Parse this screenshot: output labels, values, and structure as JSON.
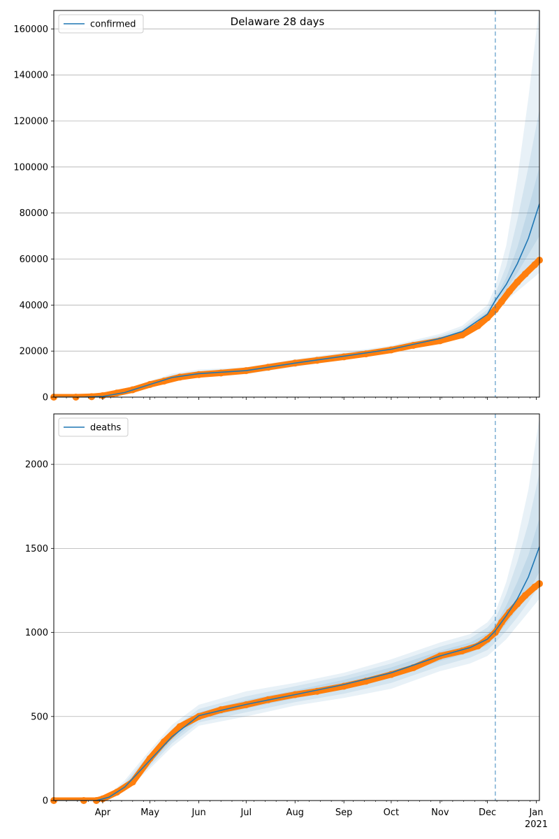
{
  "figure": {
    "title": "Delaware 28 days"
  },
  "colors": {
    "model": "#1f77b4",
    "observed": "#ff7f0e",
    "band": "#1f77b4",
    "grid": "#b0b0b0",
    "forecast_line": "#1f77b4"
  },
  "chart_data": [
    {
      "type": "line",
      "panel": "confirmed",
      "title": "Delaware 28 days",
      "legend": [
        "confirmed"
      ],
      "legend_position": "top-left",
      "grid": "y",
      "xlim": [
        "2020-03-01",
        "2021-01-03"
      ],
      "ylim": [
        0,
        168000
      ],
      "yticks": [
        0,
        20000,
        40000,
        60000,
        80000,
        100000,
        120000,
        140000,
        160000
      ],
      "forecast_start": "2020-12-06",
      "observed": {
        "x": [
          "2020-03-01",
          "2020-03-15",
          "2020-03-25",
          "2020-04-01",
          "2020-04-10",
          "2020-04-20",
          "2020-05-01",
          "2020-05-10",
          "2020-05-20",
          "2020-06-01",
          "2020-06-15",
          "2020-07-01",
          "2020-07-15",
          "2020-08-01",
          "2020-08-15",
          "2020-09-01",
          "2020-09-15",
          "2020-10-01",
          "2020-10-15",
          "2020-11-01",
          "2020-11-15",
          "2020-11-25",
          "2020-12-01",
          "2020-12-06",
          "2020-12-10",
          "2020-12-15",
          "2020-12-20",
          "2020-12-25",
          "2020-12-31",
          "2021-01-03"
        ],
        "y": [
          0,
          0,
          200,
          600,
          1800,
          3200,
          5500,
          7000,
          8700,
          9800,
          10500,
          11500,
          13000,
          14800,
          16000,
          17500,
          18800,
          20500,
          22500,
          24500,
          27000,
          31000,
          34500,
          38000,
          41500,
          46000,
          50000,
          53500,
          57500,
          59500
        ]
      },
      "model": {
        "x": [
          "2020-03-01",
          "2020-03-20",
          "2020-04-01",
          "2020-04-15",
          "2020-05-01",
          "2020-05-15",
          "2020-06-01",
          "2020-07-01",
          "2020-08-01",
          "2020-09-01",
          "2020-10-01",
          "2020-11-01",
          "2020-11-15",
          "2020-12-01",
          "2020-12-06",
          "2020-12-13",
          "2020-12-20",
          "2020-12-27",
          "2021-01-03"
        ],
        "y": [
          0,
          0,
          300,
          2000,
          5500,
          8500,
          10200,
          11500,
          14800,
          17800,
          20800,
          25500,
          28500,
          36000,
          42000,
          49000,
          58000,
          69000,
          84000
        ]
      },
      "bands": [
        {
          "lower": [
            0,
            0,
            0,
            1000,
            4000,
            6800,
            8500,
            10000,
            13200,
            16200,
            19300,
            24000,
            27000,
            34000,
            38500,
            42000,
            46000,
            50000,
            54000
          ],
          "upper": [
            0,
            0,
            500,
            3000,
            7000,
            10200,
            12000,
            13000,
            16400,
            19500,
            22400,
            27500,
            31000,
            40000,
            48000,
            66000,
            95000,
            130000,
            170000
          ]
        },
        {
          "lower": [
            0,
            0,
            100,
            1400,
            4500,
            7500,
            9200,
            10600,
            13800,
            16800,
            19800,
            24600,
            27600,
            35000,
            40000,
            44500,
            50000,
            56000,
            62000
          ],
          "upper": [
            0,
            0,
            450,
            2700,
            6500,
            9600,
            11300,
            12500,
            15900,
            18900,
            21800,
            26700,
            29800,
            38000,
            45000,
            57000,
            77000,
            100000,
            125000
          ]
        },
        {
          "lower": [
            0,
            0,
            200,
            1700,
            5000,
            8000,
            9700,
            11000,
            14300,
            17300,
            20300,
            25000,
            28000,
            35500,
            41000,
            46500,
            54000,
            62000,
            70000
          ],
          "upper": [
            0,
            0,
            400,
            2300,
            6000,
            9000,
            10700,
            12000,
            15300,
            18300,
            21300,
            26000,
            29000,
            37000,
            43000,
            52000,
            65000,
            82000,
            100000
          ]
        }
      ]
    },
    {
      "type": "line",
      "panel": "deaths",
      "legend": [
        "deaths"
      ],
      "legend_position": "top-left",
      "grid": "y",
      "xlim": [
        "2020-03-01",
        "2021-01-03"
      ],
      "ylim": [
        0,
        2300
      ],
      "yticks": [
        0,
        500,
        1000,
        1500,
        2000
      ],
      "xticks": [
        "2020-04-01",
        "2020-05-01",
        "2020-06-01",
        "2020-07-01",
        "2020-08-01",
        "2020-09-01",
        "2020-10-01",
        "2020-11-01",
        "2020-12-01",
        "2021-01-01"
      ],
      "xtick_labels": [
        "Apr",
        "May",
        "Jun",
        "Jul",
        "Aug",
        "Sep",
        "Oct",
        "Nov",
        "Dec",
        "Jan"
      ],
      "year_label": "2021",
      "forecast_start": "2020-12-06",
      "observed": {
        "x": [
          "2020-03-01",
          "2020-03-20",
          "2020-03-28",
          "2020-04-01",
          "2020-04-10",
          "2020-04-20",
          "2020-05-01",
          "2020-05-10",
          "2020-05-20",
          "2020-06-01",
          "2020-06-15",
          "2020-07-01",
          "2020-07-15",
          "2020-08-01",
          "2020-08-15",
          "2020-09-01",
          "2020-09-15",
          "2020-10-01",
          "2020-10-15",
          "2020-11-01",
          "2020-11-15",
          "2020-11-25",
          "2020-12-01",
          "2020-12-06",
          "2020-12-10",
          "2020-12-15",
          "2020-12-20",
          "2020-12-25",
          "2020-12-31",
          "2021-01-03"
        ],
        "y": [
          0,
          0,
          0,
          10,
          50,
          110,
          250,
          350,
          440,
          500,
          540,
          570,
          600,
          630,
          650,
          680,
          710,
          750,
          790,
          860,
          890,
          920,
          960,
          1000,
          1060,
          1120,
          1170,
          1220,
          1270,
          1290
        ]
      },
      "model": {
        "x": [
          "2020-03-01",
          "2020-03-28",
          "2020-04-05",
          "2020-04-15",
          "2020-05-01",
          "2020-05-15",
          "2020-06-01",
          "2020-07-01",
          "2020-08-01",
          "2020-09-01",
          "2020-10-01",
          "2020-11-01",
          "2020-11-20",
          "2020-12-01",
          "2020-12-06",
          "2020-12-13",
          "2020-12-20",
          "2020-12-27",
          "2021-01-03"
        ],
        "y": [
          0,
          0,
          20,
          80,
          240,
          380,
          505,
          572,
          630,
          690,
          760,
          860,
          910,
          960,
          1010,
          1100,
          1200,
          1330,
          1510
        ]
      },
      "bands": [
        {
          "lower": [
            0,
            0,
            10,
            55,
            190,
            320,
            445,
            500,
            565,
            610,
            665,
            770,
            815,
            860,
            900,
            960,
            1040,
            1120,
            1200
          ],
          "upper": [
            0,
            0,
            35,
            120,
            300,
            450,
            570,
            650,
            700,
            760,
            840,
            940,
            990,
            1060,
            1120,
            1300,
            1550,
            1850,
            2280
          ]
        },
        {
          "lower": [
            0,
            0,
            14,
            64,
            205,
            340,
            465,
            525,
            585,
            635,
            700,
            800,
            850,
            895,
            940,
            1010,
            1090,
            1180,
            1280
          ],
          "upper": [
            0,
            0,
            30,
            105,
            280,
            425,
            545,
            620,
            680,
            740,
            815,
            915,
            965,
            1030,
            1080,
            1230,
            1420,
            1650,
            1950
          ]
        },
        {
          "lower": [
            0,
            0,
            17,
            72,
            220,
            358,
            485,
            548,
            608,
            660,
            730,
            830,
            880,
            925,
            975,
            1050,
            1140,
            1240,
            1360
          ],
          "upper": [
            0,
            0,
            25,
            92,
            262,
            404,
            525,
            598,
            655,
            718,
            792,
            890,
            940,
            995,
            1045,
            1160,
            1300,
            1460,
            1680
          ]
        }
      ]
    }
  ]
}
